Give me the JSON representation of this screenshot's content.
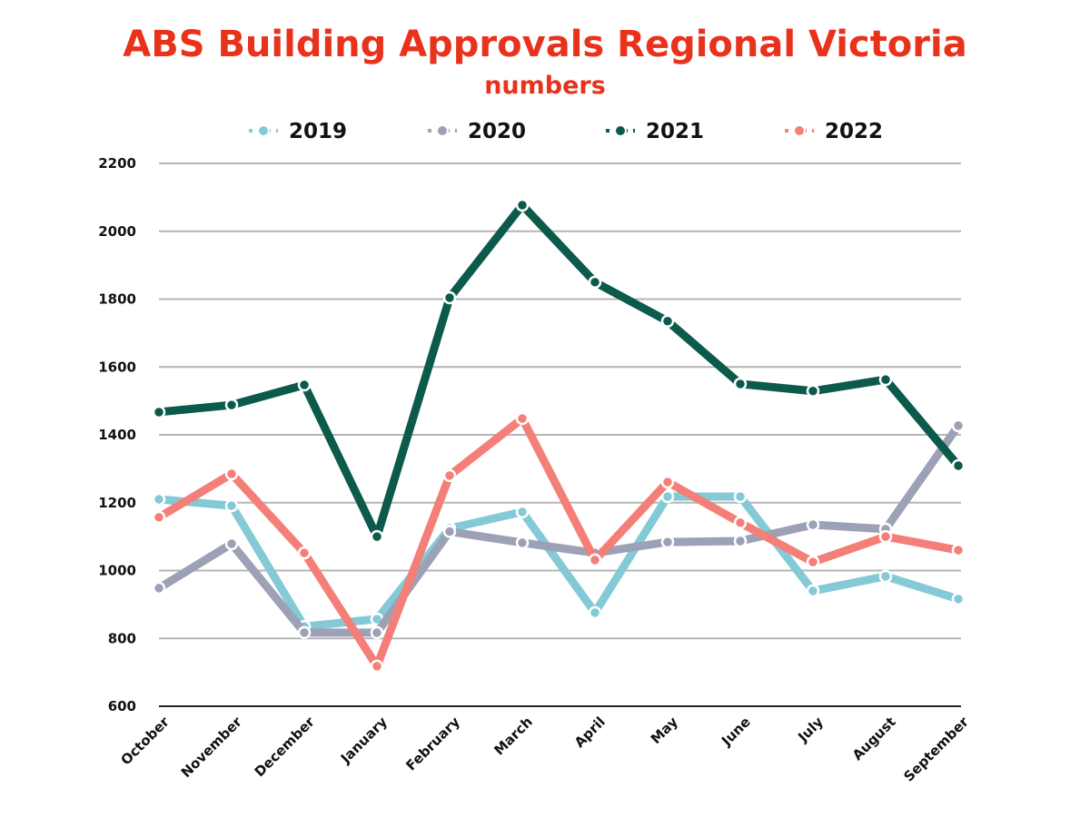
{
  "chart_data": {
    "type": "line",
    "title": "ABS Building Approvals Regional Victoria",
    "subtitle": "numbers",
    "xlabel": "",
    "ylabel": "",
    "ylim": [
      600,
      2200
    ],
    "yticks": [
      "600",
      "800",
      "1000",
      "1200",
      "1400",
      "1600",
      "1800",
      "2000",
      "2200"
    ],
    "grid": true,
    "legend_position": "top-center",
    "categories": [
      "October",
      "November",
      "December",
      "January",
      "February",
      "March",
      "April",
      "May",
      "June",
      "July",
      "August",
      "September"
    ],
    "series": [
      {
        "name": "2019",
        "color": "#84cad6",
        "values": [
          1210,
          1191,
          835,
          857,
          1124,
          1173,
          876,
          1218,
          1218,
          940,
          983,
          916
        ]
      },
      {
        "name": "2020",
        "color": "#9ca1b5",
        "values": [
          948,
          1079,
          817,
          817,
          1115,
          1082,
          1052,
          1084,
          1087,
          1135,
          1122,
          1427
        ]
      },
      {
        "name": "2021",
        "color": "#0b5a4b",
        "values": [
          1467,
          1488,
          1547,
          1100,
          1804,
          2077,
          1850,
          1735,
          1550,
          1529,
          1563,
          1309
        ]
      },
      {
        "name": "2022",
        "color": "#f47f78",
        "values": [
          1157,
          1285,
          1052,
          718,
          1280,
          1448,
          1031,
          1261,
          1141,
          1025,
          1100,
          1060
        ]
      }
    ]
  }
}
